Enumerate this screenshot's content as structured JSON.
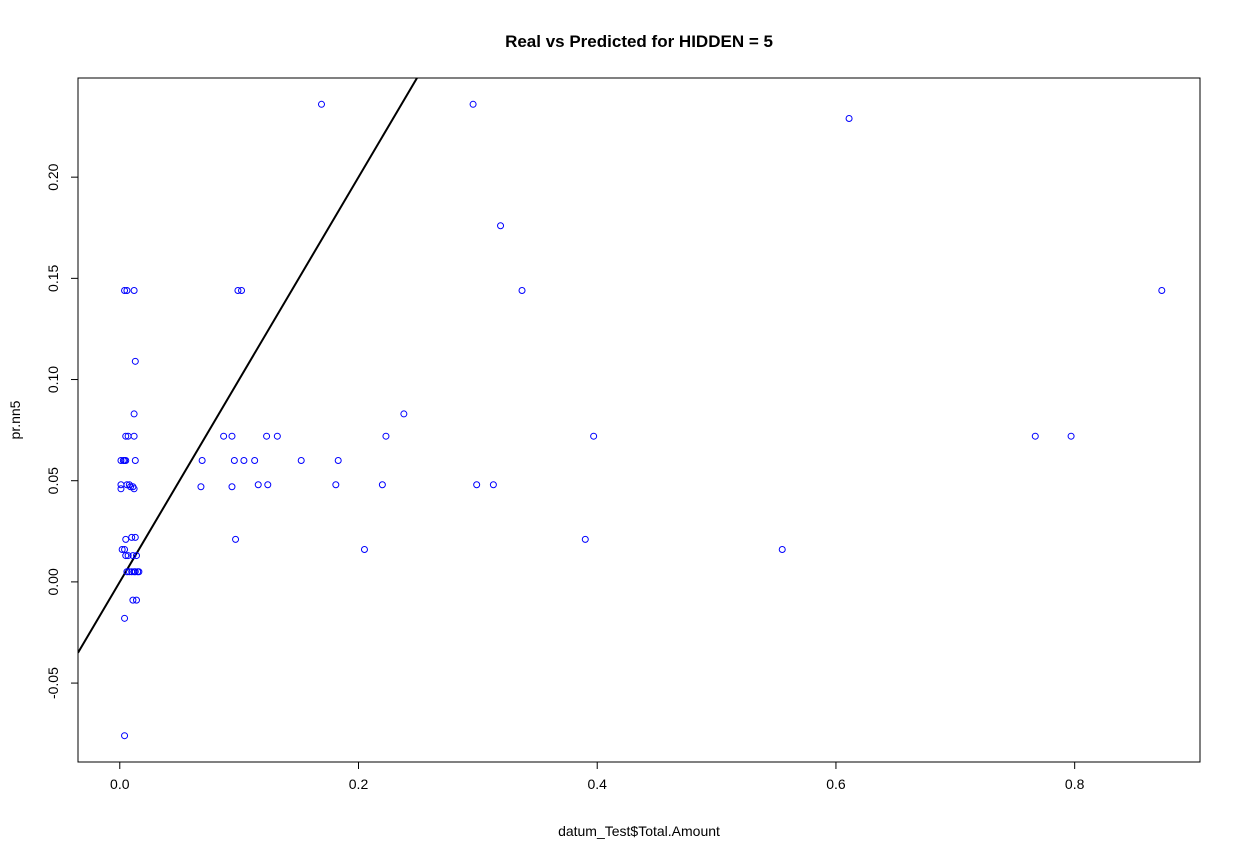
{
  "chart_data": {
    "type": "scatter",
    "title": "Real vs Predicted for HIDDEN = 5",
    "xlabel": "datum_Test$Total.Amount",
    "ylabel": "pr.nn5",
    "xlim": [
      -0.035,
      0.905
    ],
    "ylim": [
      -0.089,
      0.249
    ],
    "x_ticks": [
      0.0,
      0.2,
      0.4,
      0.6,
      0.8
    ],
    "x_tick_labels": [
      "0.0",
      "0.2",
      "0.4",
      "0.6",
      "0.8"
    ],
    "y_ticks": [
      -0.05,
      0.0,
      0.05,
      0.1,
      0.15,
      0.2
    ],
    "y_tick_labels": [
      "-0.05",
      "0.00",
      "0.05",
      "0.10",
      "0.15",
      "0.20"
    ],
    "grid": false,
    "point_color": "#0000ff",
    "line_color": "#000000",
    "reference_line": {
      "intercept": 0,
      "slope": 1
    },
    "points": [
      {
        "x": 0.169,
        "y": 0.236
      },
      {
        "x": 0.296,
        "y": 0.236
      },
      {
        "x": 0.611,
        "y": 0.229
      },
      {
        "x": 0.319,
        "y": 0.176
      },
      {
        "x": 0.004,
        "y": 0.144
      },
      {
        "x": 0.006,
        "y": 0.144
      },
      {
        "x": 0.012,
        "y": 0.144
      },
      {
        "x": 0.099,
        "y": 0.144
      },
      {
        "x": 0.102,
        "y": 0.144
      },
      {
        "x": 0.337,
        "y": 0.144
      },
      {
        "x": 0.873,
        "y": 0.144
      },
      {
        "x": 0.013,
        "y": 0.109
      },
      {
        "x": 0.012,
        "y": 0.083
      },
      {
        "x": 0.238,
        "y": 0.083
      },
      {
        "x": 0.005,
        "y": 0.072
      },
      {
        "x": 0.007,
        "y": 0.072
      },
      {
        "x": 0.012,
        "y": 0.072
      },
      {
        "x": 0.087,
        "y": 0.072
      },
      {
        "x": 0.094,
        "y": 0.072
      },
      {
        "x": 0.123,
        "y": 0.072
      },
      {
        "x": 0.132,
        "y": 0.072
      },
      {
        "x": 0.223,
        "y": 0.072
      },
      {
        "x": 0.397,
        "y": 0.072
      },
      {
        "x": 0.767,
        "y": 0.072
      },
      {
        "x": 0.797,
        "y": 0.072
      },
      {
        "x": 0.001,
        "y": 0.06
      },
      {
        "x": 0.003,
        "y": 0.06
      },
      {
        "x": 0.004,
        "y": 0.06
      },
      {
        "x": 0.005,
        "y": 0.06
      },
      {
        "x": 0.013,
        "y": 0.06
      },
      {
        "x": 0.069,
        "y": 0.06
      },
      {
        "x": 0.096,
        "y": 0.06
      },
      {
        "x": 0.104,
        "y": 0.06
      },
      {
        "x": 0.113,
        "y": 0.06
      },
      {
        "x": 0.152,
        "y": 0.06
      },
      {
        "x": 0.183,
        "y": 0.06
      },
      {
        "x": 0.001,
        "y": 0.048
      },
      {
        "x": 0.006,
        "y": 0.048
      },
      {
        "x": 0.008,
        "y": 0.048
      },
      {
        "x": 0.009,
        "y": 0.047
      },
      {
        "x": 0.116,
        "y": 0.048
      },
      {
        "x": 0.124,
        "y": 0.048
      },
      {
        "x": 0.181,
        "y": 0.048
      },
      {
        "x": 0.22,
        "y": 0.048
      },
      {
        "x": 0.299,
        "y": 0.048
      },
      {
        "x": 0.313,
        "y": 0.048
      },
      {
        "x": 0.001,
        "y": 0.046
      },
      {
        "x": 0.011,
        "y": 0.047
      },
      {
        "x": 0.012,
        "y": 0.046
      },
      {
        "x": 0.068,
        "y": 0.047
      },
      {
        "x": 0.094,
        "y": 0.047
      },
      {
        "x": 0.005,
        "y": 0.021
      },
      {
        "x": 0.097,
        "y": 0.021
      },
      {
        "x": 0.39,
        "y": 0.021
      },
      {
        "x": 0.01,
        "y": 0.022
      },
      {
        "x": 0.013,
        "y": 0.022
      },
      {
        "x": 0.002,
        "y": 0.016
      },
      {
        "x": 0.004,
        "y": 0.016
      },
      {
        "x": 0.205,
        "y": 0.016
      },
      {
        "x": 0.555,
        "y": 0.016
      },
      {
        "x": 0.005,
        "y": 0.013
      },
      {
        "x": 0.007,
        "y": 0.013
      },
      {
        "x": 0.011,
        "y": 0.013
      },
      {
        "x": 0.014,
        "y": 0.013
      },
      {
        "x": 0.006,
        "y": 0.005
      },
      {
        "x": 0.008,
        "y": 0.005
      },
      {
        "x": 0.01,
        "y": 0.005
      },
      {
        "x": 0.012,
        "y": 0.005
      },
      {
        "x": 0.013,
        "y": 0.005
      },
      {
        "x": 0.015,
        "y": 0.005
      },
      {
        "x": 0.016,
        "y": 0.005
      },
      {
        "x": 0.011,
        "y": -0.009
      },
      {
        "x": 0.014,
        "y": -0.009
      },
      {
        "x": 0.004,
        "y": -0.018
      },
      {
        "x": 0.004,
        "y": -0.076
      }
    ]
  }
}
